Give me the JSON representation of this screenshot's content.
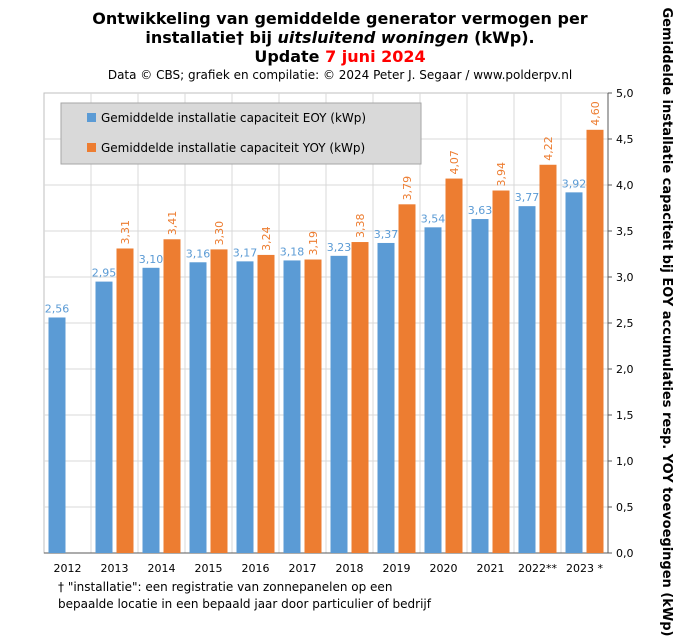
{
  "title": {
    "line1": "Ontwikkeling  van gemiddelde  generator vermogen per",
    "line2_a": "installatie†  bij ",
    "line2_italic": "uitsluitend  woningen",
    "line2_b": " (kWp).",
    "line3_a": "Update ",
    "line3_date": "7 juni 2024"
  },
  "credit": "Data © CBS; grafiek en compilatie:  © 2024 Peter J. Segaar / www.polderpv.nl",
  "footnote": {
    "line1": "† \"installatie\": een registratie van zonnepanelen op een",
    "line2": "bepaalde locatie in een bepaald jaar door particulier of bedrijf"
  },
  "colors": {
    "eoy": "#5b9bd5",
    "yoy": "#ed7d31",
    "grid": "#d9d9d9",
    "legend_bg": "#d9d9d9"
  },
  "chart_data": {
    "type": "bar",
    "categories": [
      "2012",
      "2013",
      "2014",
      "2015",
      "2016",
      "2017",
      "2018",
      "2019",
      "2020",
      "2021",
      "2022**",
      "2023 *"
    ],
    "series": [
      {
        "name": "Gemiddelde installatie capaciteit EOY (kWp)",
        "values": [
          2.56,
          2.95,
          3.1,
          3.16,
          3.17,
          3.18,
          3.23,
          3.37,
          3.54,
          3.63,
          3.77,
          3.92
        ]
      },
      {
        "name": "Gemiddelde installatie capaciteit YOY (kWp)",
        "values": [
          null,
          3.31,
          3.41,
          3.3,
          3.24,
          3.19,
          3.38,
          3.79,
          4.07,
          3.94,
          4.22,
          4.6
        ]
      }
    ],
    "ylabel": "Gemiddelde installatie capaciteit bij EOY accumulaties resp. YOY toevoegingen (kWp)",
    "ylim": [
      0,
      5
    ],
    "ytick_step": 0.5,
    "yaxis_side": "right",
    "grid": true,
    "legend_position": "top-left",
    "decimal_separator": ","
  }
}
